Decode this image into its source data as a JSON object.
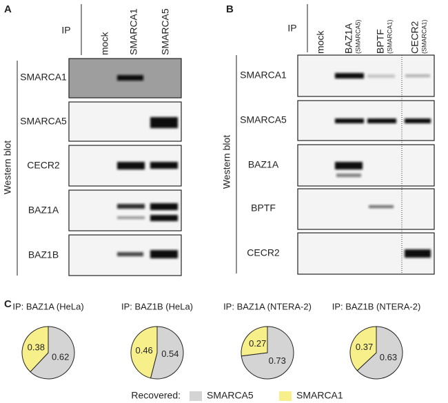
{
  "panel_a": {
    "label": "A",
    "ip": "IP",
    "axis": "Western blot",
    "lanes": [
      "mock",
      "SMARCA1",
      "SMARCA5"
    ],
    "rows": [
      "SMARCA1",
      "SMARCA5",
      "CECR2",
      "BAZ1A",
      "BAZ1B"
    ]
  },
  "panel_b": {
    "label": "B",
    "ip": "IP",
    "axis": "Western blot",
    "lanes": [
      {
        "name": "mock"
      },
      {
        "name": "BAZ1A",
        "sub": "(SMARCA5)"
      },
      {
        "name": "BPTF",
        "sub": "(SMARCA1)"
      },
      {
        "name": "CECR2",
        "sub": "(SMARCA1)"
      }
    ],
    "rows": [
      "SMARCA1",
      "SMARCA5",
      "BAZ1A",
      "BPTF",
      "CECR2"
    ]
  },
  "panel_c": {
    "label": "C",
    "legend_title": "Recovered:"
  },
  "chart_data": [
    {
      "type": "pie",
      "title": "IP: BAZ1A (HeLa)",
      "categories": [
        "SMARCA5",
        "SMARCA1"
      ],
      "values": [
        0.62,
        0.38
      ],
      "colors": [
        "#d4d4d4",
        "#f7ef8a"
      ]
    },
    {
      "type": "pie",
      "title": "IP: BAZ1B (HeLa)",
      "categories": [
        "SMARCA5",
        "SMARCA1"
      ],
      "values": [
        0.54,
        0.46
      ],
      "colors": [
        "#d4d4d4",
        "#f7ef8a"
      ]
    },
    {
      "type": "pie",
      "title": "IP: BAZ1A (NTERA-2)",
      "categories": [
        "SMARCA5",
        "SMARCA1"
      ],
      "values": [
        0.73,
        0.27
      ],
      "colors": [
        "#d4d4d4",
        "#f7ef8a"
      ]
    },
    {
      "type": "pie",
      "title": "IP: BAZ1B (NTERA-2)",
      "categories": [
        "SMARCA5",
        "SMARCA1"
      ],
      "values": [
        0.63,
        0.37
      ],
      "colors": [
        "#d4d4d4",
        "#f7ef8a"
      ]
    }
  ]
}
